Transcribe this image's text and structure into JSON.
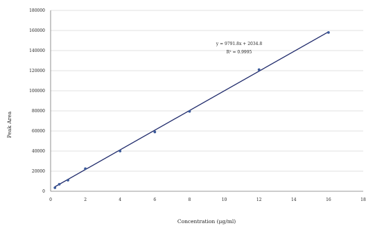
{
  "chart_data": {
    "type": "scatter",
    "title": "",
    "xlabel": "Concentration (μg/ml)",
    "ylabel": "Peak Area",
    "xlim": [
      0,
      18
    ],
    "ylim": [
      0,
      180000
    ],
    "x_ticks": [
      0,
      2,
      4,
      6,
      8,
      10,
      12,
      14,
      16,
      18
    ],
    "y_ticks": [
      0,
      20000,
      40000,
      60000,
      80000,
      100000,
      120000,
      140000,
      160000,
      180000
    ],
    "grid": true,
    "series": [
      {
        "x": [
          0.25,
          0.5,
          1,
          2,
          4,
          6,
          8,
          12,
          16
        ],
        "y": [
          3500,
          7000,
          11000,
          22500,
          40000,
          59000,
          79500,
          121000,
          158000
        ],
        "color": "#3b5a9a"
      }
    ],
    "trendline": {
      "type": "linear",
      "slope": 9791.8,
      "intercept": 2034.8,
      "color": "#1f2a6b"
    },
    "annotations": [
      "y = 9791.8x + 2034.8",
      "R² = 0.9995"
    ]
  }
}
